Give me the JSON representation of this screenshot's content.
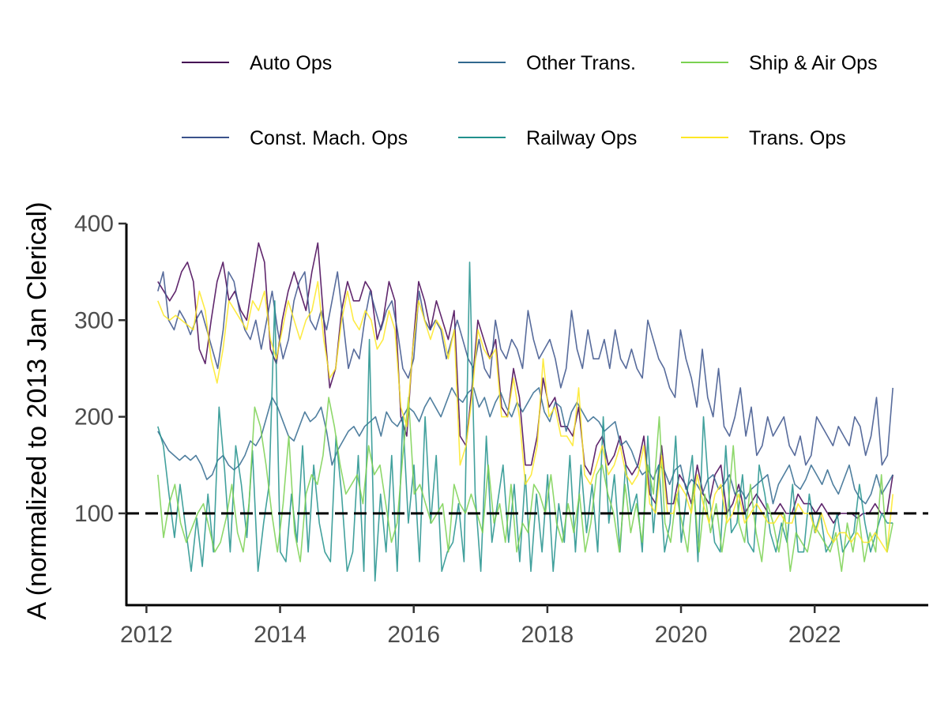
{
  "chart_data": {
    "type": "line",
    "ylabel": "A (normalized to 2013 Jan Clerical)",
    "xlabel": "",
    "xlim": [
      2011.7,
      2023.7
    ],
    "ylim": [
      5,
      400
    ],
    "x_ticks": [
      2012,
      2014,
      2016,
      2018,
      2020,
      2022
    ],
    "y_ticks": [
      100,
      200,
      300,
      400
    ],
    "reference_line": {
      "y": 100,
      "style": "dashed",
      "color": "#000000"
    },
    "grid": false,
    "legend_position": "top",
    "series": [
      {
        "name": "Auto Ops",
        "color": "#440154",
        "x_start": 2012.17,
        "x_end": 2023.17,
        "values": [
          340,
          330,
          320,
          330,
          350,
          360,
          340,
          270,
          255,
          300,
          340,
          360,
          320,
          330,
          310,
          300,
          340,
          380,
          360,
          270,
          255,
          300,
          330,
          350,
          330,
          310,
          350,
          380,
          300,
          230,
          250,
          310,
          340,
          320,
          320,
          340,
          330,
          280,
          300,
          340,
          320,
          200,
          180,
          270,
          340,
          320,
          290,
          320,
          300,
          280,
          310,
          180,
          170,
          230,
          300,
          280,
          260,
          280,
          210,
          200,
          250,
          220,
          150,
          150,
          180,
          240,
          210,
          220,
          190,
          190,
          180,
          210,
          150,
          140,
          170,
          180,
          150,
          160,
          180,
          150,
          140,
          150,
          180,
          120,
          110,
          170,
          110,
          110,
          140,
          130,
          110,
          150,
          120,
          110,
          140,
          150,
          100,
          110,
          130,
          100,
          110,
          120,
          110,
          100,
          100,
          110,
          100,
          100,
          120,
          110,
          110,
          100,
          110,
          100,
          90,
          100,
          100,
          100,
          95,
          100,
          100,
          110,
          100,
          100,
          140
        ]
      },
      {
        "name": "Const. Mach. Ops",
        "color": "#3b528b",
        "x_start": 2012.17,
        "x_end": 2023.17,
        "values": [
          330,
          350,
          300,
          290,
          310,
          300,
          285,
          300,
          310,
          290,
          270,
          250,
          290,
          350,
          340,
          310,
          290,
          280,
          300,
          270,
          300,
          330,
          290,
          260,
          280,
          320,
          340,
          350,
          300,
          290,
          310,
          290,
          320,
          350,
          300,
          250,
          270,
          260,
          300,
          330,
          310,
          290,
          310,
          320,
          290,
          250,
          240,
          260,
          330,
          300,
          290,
          300,
          290,
          260,
          280,
          300,
          280,
          260,
          250,
          280,
          250,
          240,
          300,
          270,
          260,
          280,
          270,
          250,
          310,
          280,
          260,
          270,
          280,
          260,
          230,
          250,
          310,
          270,
          250,
          290,
          260,
          260,
          280,
          250,
          290,
          260,
          250,
          270,
          250,
          240,
          300,
          280,
          260,
          250,
          230,
          220,
          290,
          260,
          240,
          210,
          270,
          220,
          200,
          250,
          190,
          180,
          200,
          230,
          180,
          210,
          160,
          170,
          200,
          180,
          190,
          200,
          170,
          160,
          180,
          150,
          160,
          200,
          190,
          180,
          170,
          190,
          180,
          170,
          200,
          190,
          160,
          180,
          220,
          150,
          160,
          230
        ]
      },
      {
        "name": "Other Trans.",
        "color": "#31688e",
        "x_start": 2012.17,
        "x_end": 2023.17,
        "values": [
          185,
          175,
          165,
          160,
          155,
          160,
          155,
          160,
          150,
          135,
          140,
          155,
          160,
          150,
          145,
          150,
          160,
          175,
          170,
          180,
          200,
          220,
          210,
          195,
          180,
          175,
          190,
          205,
          195,
          200,
          210,
          185,
          150,
          165,
          175,
          185,
          190,
          180,
          190,
          195,
          200,
          180,
          205,
          195,
          190,
          200,
          210,
          205,
          195,
          210,
          220,
          210,
          200,
          215,
          230,
          220,
          215,
          225,
          230,
          210,
          220,
          200,
          215,
          225,
          210,
          200,
          215,
          205,
          215,
          225,
          230,
          205,
          195,
          215,
          210,
          185,
          205,
          215,
          205,
          195,
          200,
          195,
          185,
          190,
          195,
          170,
          175,
          165,
          150,
          140,
          145,
          135,
          150,
          145,
          130,
          145,
          150,
          125,
          135,
          130,
          120,
          135,
          140,
          125,
          130,
          140,
          120,
          125,
          115,
          125,
          130,
          135,
          140,
          110,
          130,
          140,
          150,
          130,
          125,
          135,
          150,
          140,
          130,
          145,
          130,
          120,
          135,
          150,
          125,
          115,
          110,
          120,
          140,
          120,
          130,
          140
        ]
      },
      {
        "name": "Railway Ops",
        "color": "#21918c",
        "x_start": 2012.17,
        "x_end": 2023.17,
        "values": [
          190,
          170,
          120,
          75,
          130,
          85,
          40,
          95,
          45,
          120,
          60,
          210,
          145,
          60,
          170,
          130,
          75,
          165,
          40,
          90,
          130,
          320,
          60,
          50,
          120,
          70,
          170,
          60,
          150,
          90,
          60,
          50,
          180,
          120,
          40,
          60,
          160,
          40,
          280,
          30,
          120,
          60,
          160,
          40,
          200,
          90,
          150,
          50,
          200,
          90,
          160,
          40,
          60,
          70,
          110,
          50,
          360,
          120,
          40,
          180,
          70,
          110,
          150,
          70,
          130,
          50,
          140,
          40,
          120,
          60,
          140,
          40,
          110,
          70,
          160,
          60,
          150,
          80,
          130,
          60,
          200,
          90,
          140,
          60,
          150,
          100,
          120,
          60,
          180,
          80,
          150,
          60,
          90,
          180,
          70,
          120,
          160,
          50,
          200,
          120,
          70,
          60,
          170,
          80,
          90,
          140,
          70,
          60,
          150,
          120,
          80,
          60,
          90,
          70,
          130,
          60,
          60,
          120,
          80,
          100,
          60,
          70,
          100,
          60,
          70,
          80,
          130,
          90,
          60,
          80,
          100,
          90,
          90
        ]
      },
      {
        "name": "Ship & Air Ops",
        "color": "#7ad151",
        "x_start": 2012.17,
        "x_end": 2023.17,
        "values": [
          140,
          75,
          110,
          130,
          90,
          70,
          85,
          100,
          110,
          85,
          60,
          70,
          95,
          130,
          80,
          60,
          110,
          210,
          190,
          150,
          100,
          60,
          110,
          180,
          80,
          50,
          120,
          140,
          130,
          160,
          220,
          190,
          150,
          120,
          130,
          140,
          110,
          170,
          140,
          150,
          110,
          70,
          90,
          160,
          220,
          120,
          130,
          110,
          90,
          100,
          110,
          60,
          130,
          110,
          100,
          120,
          100,
          80,
          150,
          90,
          110,
          70,
          130,
          60,
          90,
          80,
          130,
          120,
          100,
          140,
          90,
          70,
          110,
          80,
          120,
          60,
          90,
          140,
          150,
          120,
          100,
          60,
          130,
          80,
          110,
          70,
          150,
          120,
          200,
          90,
          70,
          120,
          90,
          60,
          130,
          60,
          120,
          80,
          110,
          60,
          100,
          170,
          90,
          70,
          130,
          80,
          50,
          110,
          90,
          60,
          100,
          40,
          80,
          70,
          60,
          90,
          80,
          70,
          60,
          80,
          40,
          90,
          60,
          100,
          50,
          80,
          60,
          140,
          60,
          90
        ]
      },
      {
        "name": "Trans. Ops",
        "color": "#fde725",
        "x_start": 2012.17,
        "x_end": 2023.17,
        "values": [
          320,
          305,
          300,
          305,
          300,
          295,
          290,
          330,
          310,
          260,
          235,
          270,
          320,
          310,
          300,
          290,
          320,
          310,
          330,
          280,
          260,
          290,
          320,
          300,
          280,
          300,
          310,
          340,
          280,
          240,
          250,
          300,
          330,
          300,
          290,
          310,
          300,
          270,
          280,
          310,
          290,
          210,
          190,
          270,
          320,
          300,
          280,
          300,
          290,
          260,
          290,
          150,
          170,
          220,
          290,
          270,
          260,
          270,
          200,
          200,
          240,
          200,
          130,
          140,
          170,
          260,
          200,
          210,
          180,
          180,
          170,
          230,
          140,
          130,
          150,
          170,
          140,
          150,
          170,
          140,
          130,
          140,
          170,
          110,
          100,
          160,
          100,
          100,
          130,
          120,
          100,
          140,
          110,
          90,
          120,
          130,
          90,
          100,
          120,
          90,
          100,
          110,
          100,
          90,
          90,
          100,
          90,
          90,
          110,
          100,
          100,
          80,
          100,
          80,
          70,
          80,
          80,
          70,
          80,
          70,
          70,
          80,
          70,
          60,
          120
        ]
      }
    ]
  }
}
